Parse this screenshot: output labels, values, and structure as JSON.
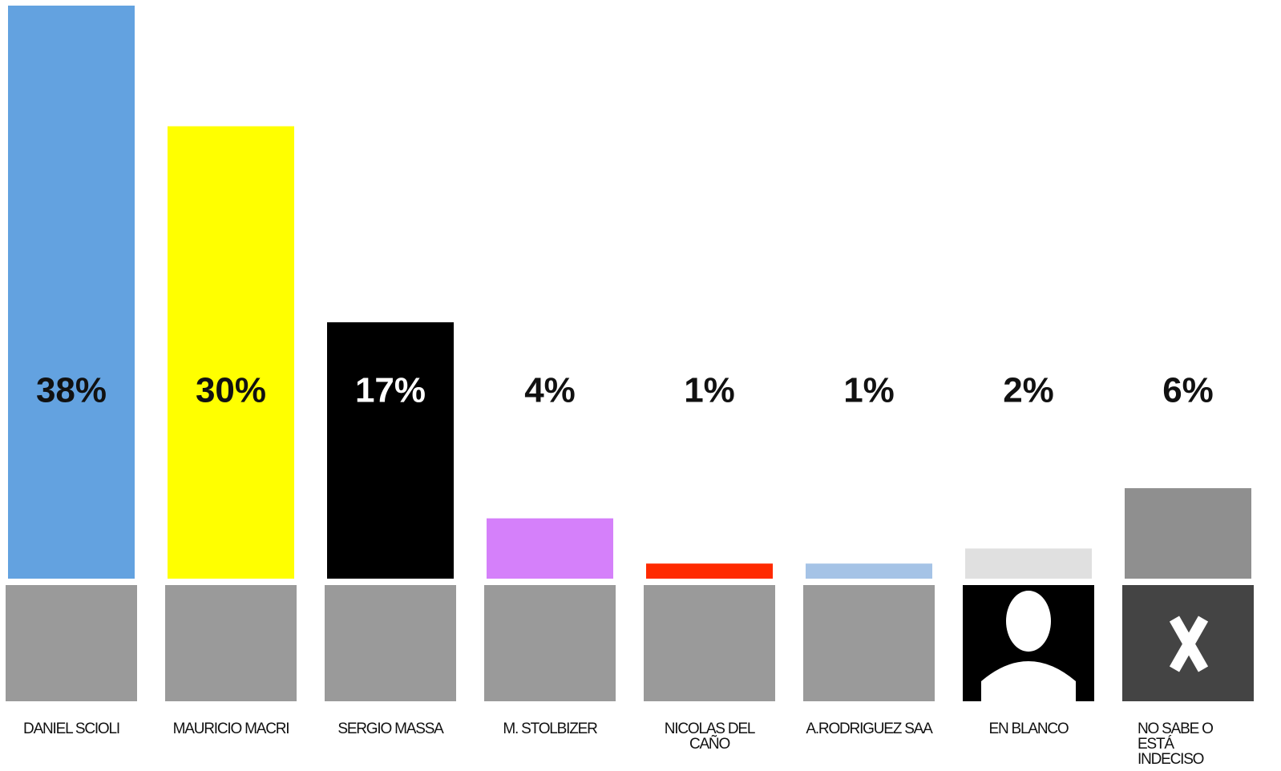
{
  "chart_data": {
    "type": "bar",
    "categories": [
      "DANIEL SCIOLI",
      "MAURICIO MACRI",
      "SERGIO MASSA",
      "M. STOLBIZER",
      "NICOLAS DEL CAÑO",
      "A.RODRIGUEZ SAA",
      "EN BLANCO",
      "NO SABE O ESTÁ INDECISO"
    ],
    "values": [
      38,
      30,
      17,
      4,
      1,
      1,
      2,
      6
    ],
    "value_labels": [
      "38%",
      "30%",
      "17%",
      "4%",
      "1%",
      "1%",
      "2%",
      "6%"
    ],
    "colors": [
      "#63a2e0",
      "#ffff00",
      "#000000",
      "#d580fa",
      "#ff2a00",
      "#a5c3e6",
      "#e0e0e0",
      "#8f8f8f"
    ]
  }
}
